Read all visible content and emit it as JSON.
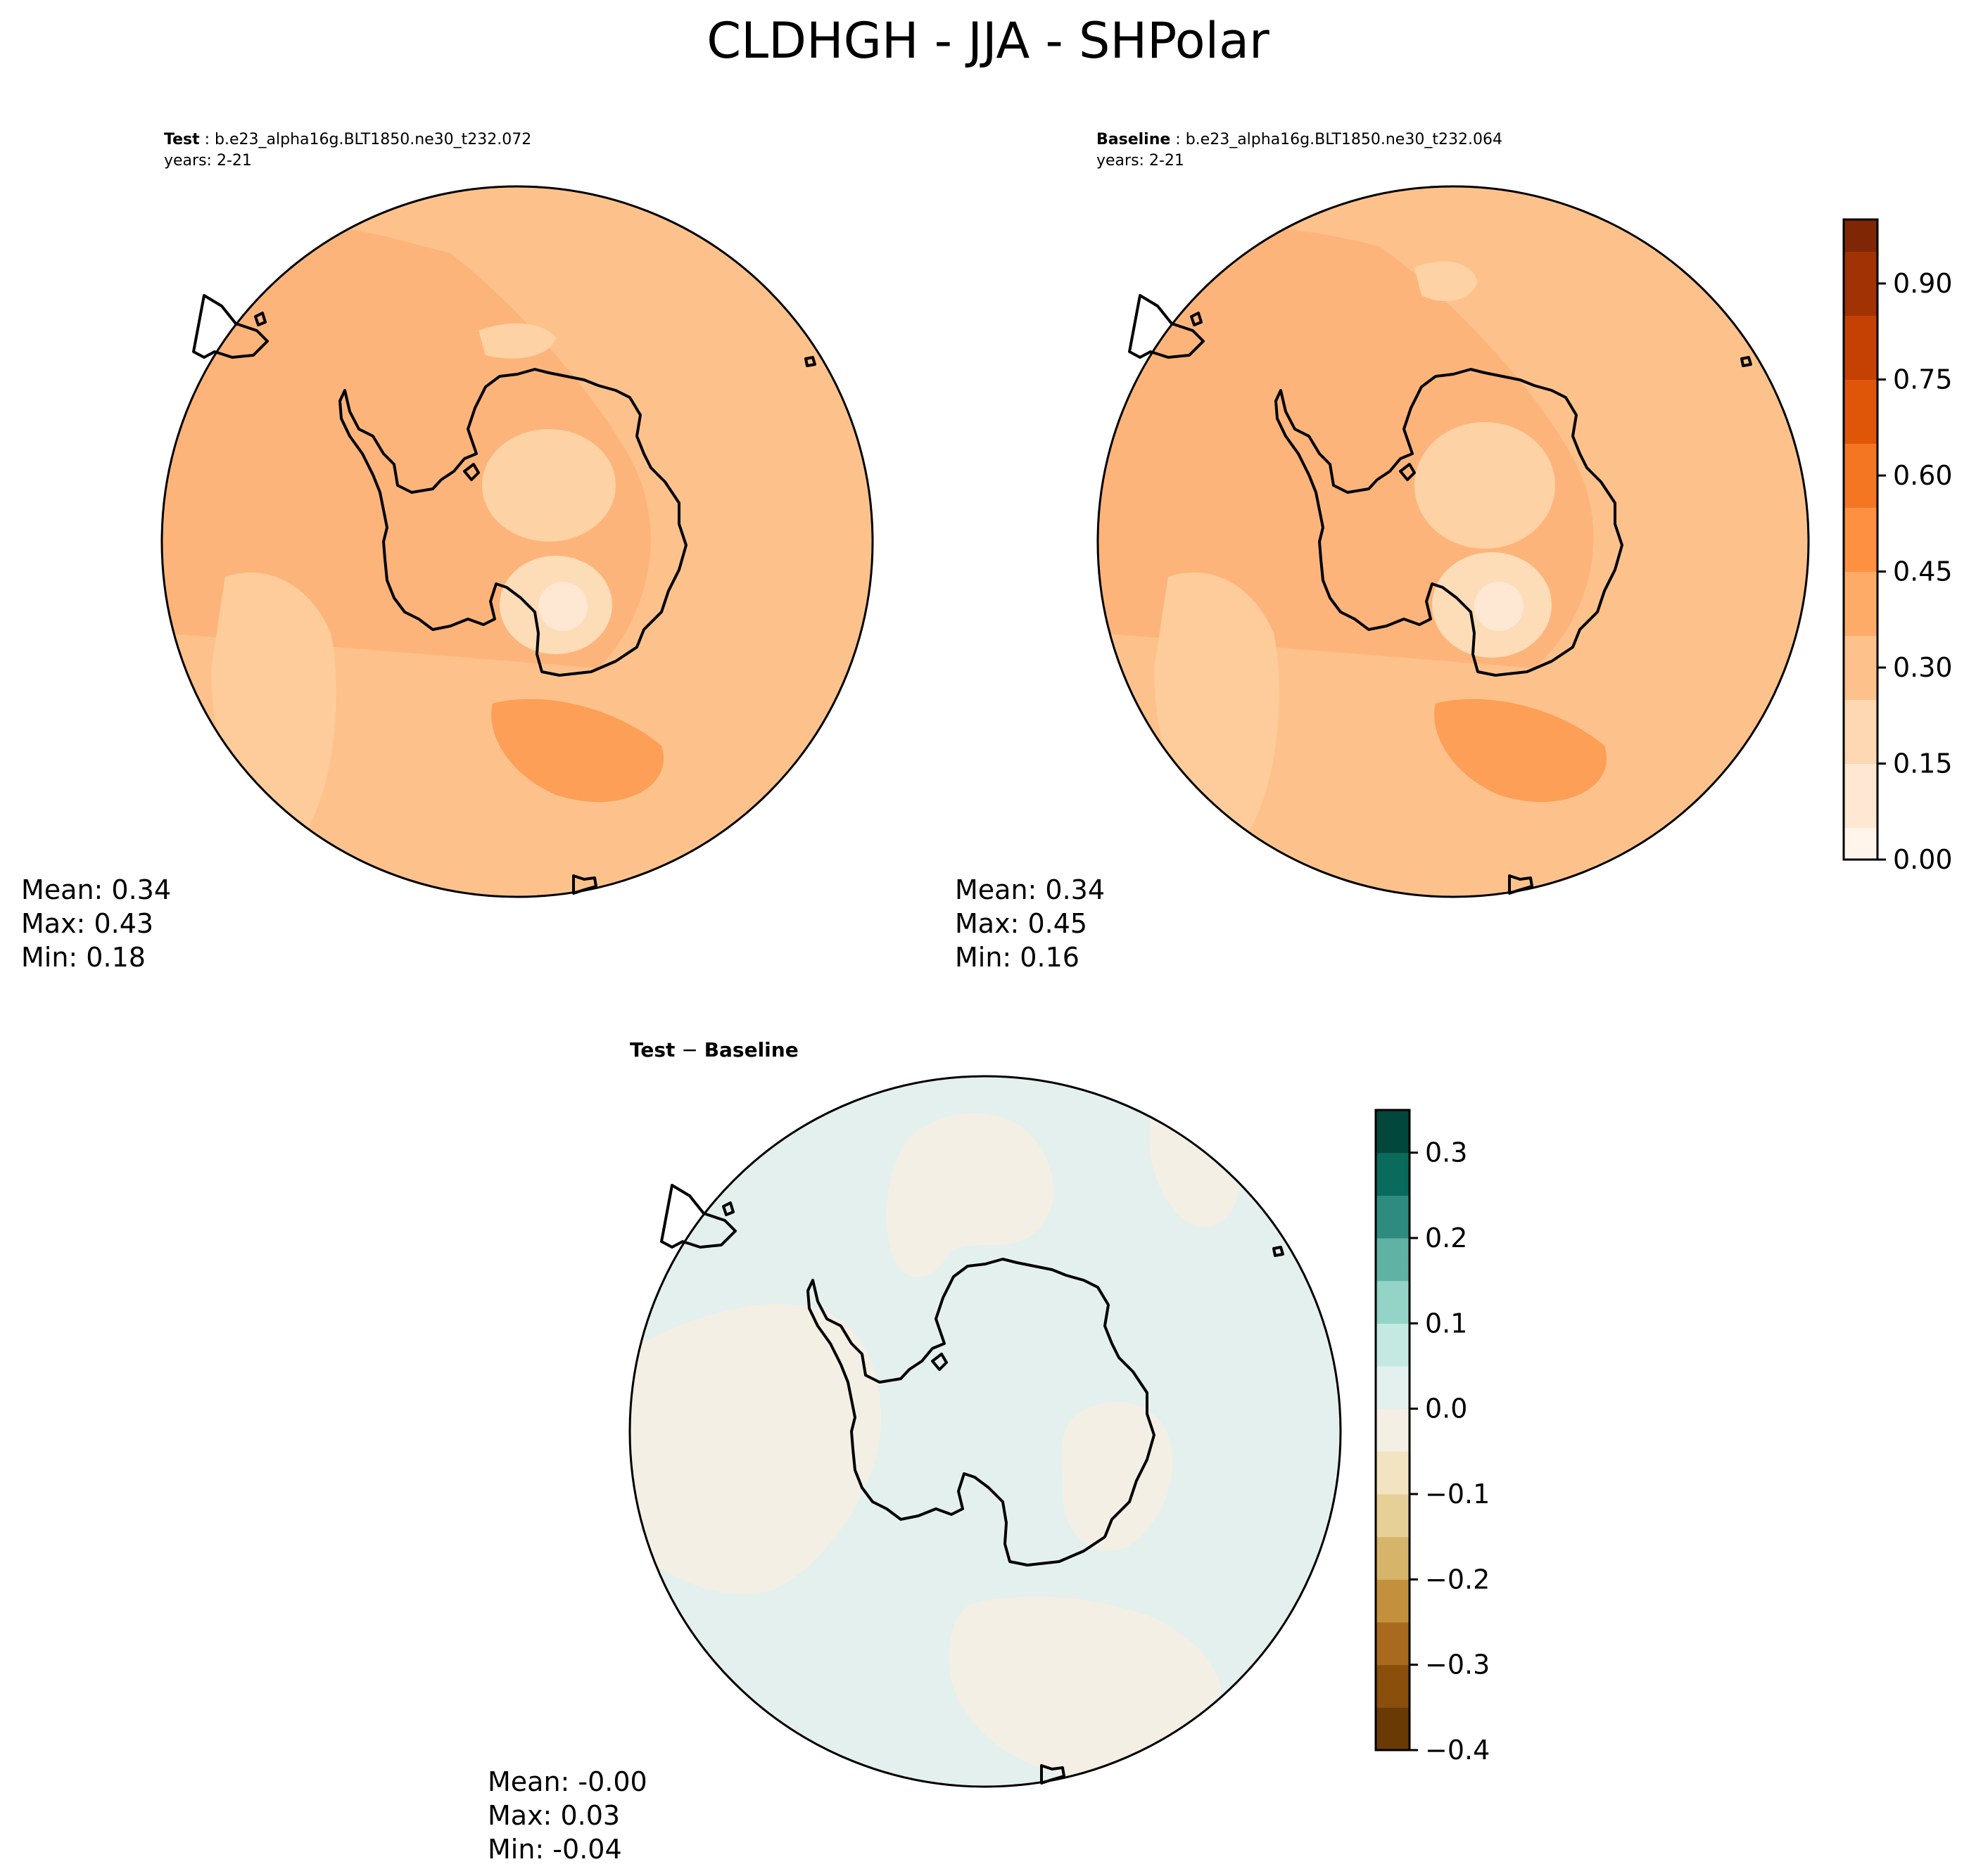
{
  "figure": {
    "title": "CLDHGH - JJA - SHPolar"
  },
  "colors": {
    "land_outline": "#000000",
    "orange_ramp": [
      "#fff5eb",
      "#fee8d3",
      "#fdd8b3",
      "#fdc28c",
      "#fdab67",
      "#fd9141",
      "#f57622",
      "#e05608",
      "#c44103",
      "#9f3303",
      "#7f2704"
    ],
    "diff_ramp_negative": [
      "#f3efe4",
      "#f2e4c0",
      "#e6d098",
      "#d6b46a",
      "#c3913d",
      "#a86a1e",
      "#8a4f0b",
      "#6a3a05"
    ],
    "diff_ramp_positive": [
      "#e3f0ee",
      "#c4e8e2",
      "#93d4c7",
      "#5fb2a4",
      "#2d8c7f",
      "#0a6b5c",
      "#01473b"
    ]
  },
  "panels": {
    "test": {
      "label_bold": "Test",
      "case": "b.e23_alpha16g.BLT1850.ne30_t232.072",
      "years": "years: 2-21",
      "stats": {
        "mean": "Mean:  0.34",
        "max": "Max:  0.43",
        "min": "Min:  0.18"
      }
    },
    "baseline": {
      "label_bold": "Baseline",
      "case": "b.e23_alpha16g.BLT1850.ne30_t232.064",
      "years": "years: 2-21",
      "stats": {
        "mean": "Mean:  0.34",
        "max": "Max:  0.45",
        "min": "Min:  0.16"
      }
    },
    "diff": {
      "title_left": "Test",
      "title_sep": " − ",
      "title_right": "Baseline",
      "stats": {
        "mean": "Mean: -0.00",
        "max": "Max:  0.03",
        "min": "Min: -0.04"
      }
    }
  },
  "colorbars": {
    "main": {
      "min": 0,
      "max": 1.0,
      "ticks": [
        {
          "value": 0.0,
          "label": "0.00"
        },
        {
          "value": 0.15,
          "label": "0.15"
        },
        {
          "value": 0.3,
          "label": "0.30"
        },
        {
          "value": 0.45,
          "label": "0.45"
        },
        {
          "value": 0.6,
          "label": "0.60"
        },
        {
          "value": 0.75,
          "label": "0.75"
        },
        {
          "value": 0.9,
          "label": "0.90"
        }
      ]
    },
    "diff": {
      "min": -0.4,
      "max": 0.35,
      "ticks": [
        {
          "value": 0.3,
          "label": "0.3"
        },
        {
          "value": 0.2,
          "label": "0.2"
        },
        {
          "value": 0.1,
          "label": "0.1"
        },
        {
          "value": 0.0,
          "label": "0.0"
        },
        {
          "value": -0.1,
          "label": "−0.1"
        },
        {
          "value": -0.2,
          "label": "−0.2"
        },
        {
          "value": -0.3,
          "label": "−0.3"
        },
        {
          "value": -0.4,
          "label": "−0.4"
        }
      ]
    }
  }
}
